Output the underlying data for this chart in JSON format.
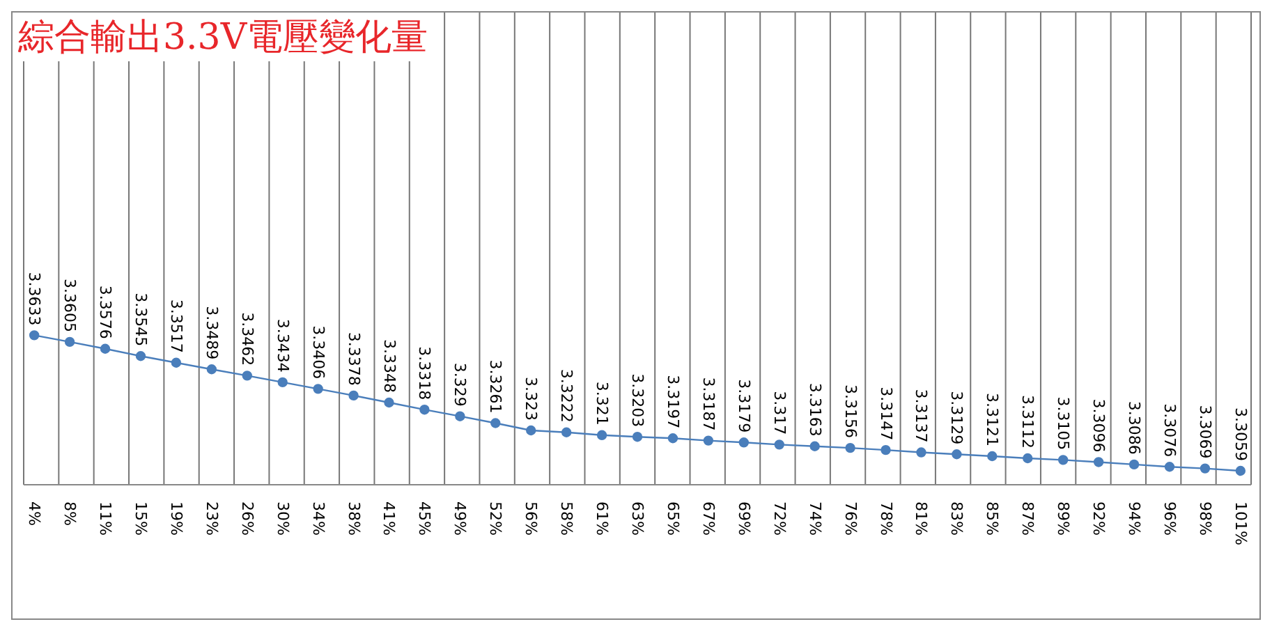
{
  "chart_data": {
    "type": "line",
    "title": "綜合輸出3.3V電壓變化量",
    "categories": [
      "4%",
      "8%",
      "11%",
      "15%",
      "19%",
      "23%",
      "26%",
      "30%",
      "34%",
      "38%",
      "41%",
      "45%",
      "49%",
      "52%",
      "56%",
      "58%",
      "61%",
      "63%",
      "65%",
      "67%",
      "69%",
      "72%",
      "74%",
      "76%",
      "78%",
      "81%",
      "83%",
      "85%",
      "87%",
      "89%",
      "92%",
      "94%",
      "96%",
      "98%",
      "101%"
    ],
    "values": [
      3.3633,
      3.3605,
      3.3576,
      3.3545,
      3.3517,
      3.3489,
      3.3462,
      3.3434,
      3.3406,
      3.3378,
      3.3348,
      3.3318,
      3.329,
      3.3261,
      3.323,
      3.3222,
      3.321,
      3.3203,
      3.3197,
      3.3187,
      3.3179,
      3.317,
      3.3163,
      3.3156,
      3.3147,
      3.3137,
      3.3129,
      3.3121,
      3.3112,
      3.3105,
      3.3096,
      3.3086,
      3.3076,
      3.3069,
      3.3059
    ],
    "color": "#4a7ebb",
    "ylim": [
      3.3,
      3.5
    ],
    "tick_labels": "x",
    "grid": "x",
    "marker": "circle",
    "line_style": "solid",
    "data_labels": true
  }
}
